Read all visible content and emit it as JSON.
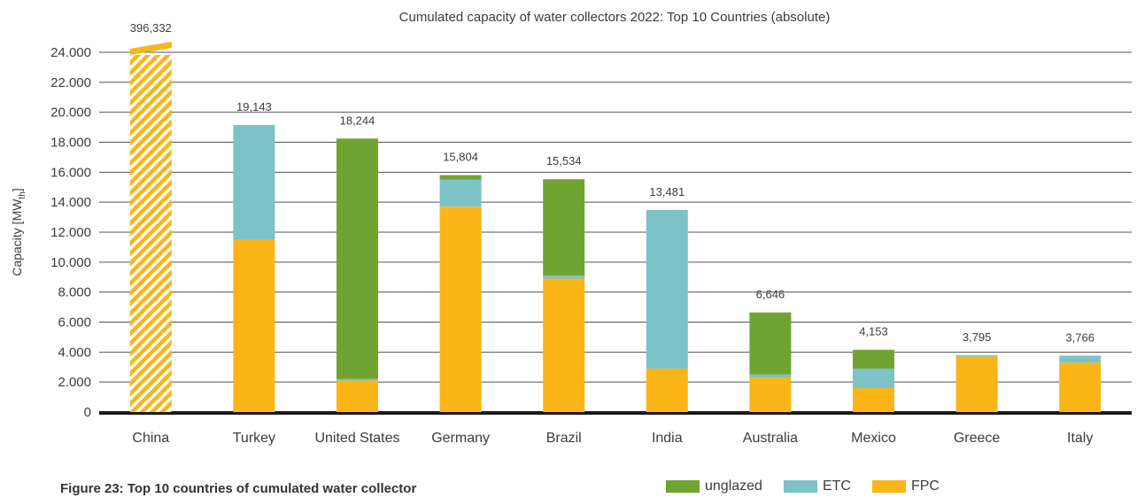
{
  "chart_data": {
    "type": "bar",
    "stacked": true,
    "title": "Cumulated capacity of water collectors 2022: Top 10 Countries (absolute)",
    "ylabel": "Capacity [MW",
    "ylabel_subscript": "th",
    "ylabel_suffix": "]",
    "ylim": [
      0,
      24000
    ],
    "yticks": [
      {
        "value": 0,
        "label": "0"
      },
      {
        "value": 2000,
        "label": "2.000"
      },
      {
        "value": 4000,
        "label": "4.000"
      },
      {
        "value": 6000,
        "label": "6.000"
      },
      {
        "value": 8000,
        "label": "8.000"
      },
      {
        "value": 10000,
        "label": "10.000"
      },
      {
        "value": 12000,
        "label": "12.000"
      },
      {
        "value": 14000,
        "label": "14.000"
      },
      {
        "value": 16000,
        "label": "16.000"
      },
      {
        "value": 18000,
        "label": "18.000"
      },
      {
        "value": 20000,
        "label": "20.000"
      },
      {
        "value": 22000,
        "label": "22.000"
      },
      {
        "value": 24000,
        "label": "24.000"
      }
    ],
    "grid": true,
    "legend_position": "bottom-right",
    "categories": [
      "China",
      "Turkey",
      "United States",
      "Germany",
      "Brazil",
      "India",
      "Australia",
      "Mexico",
      "Greece",
      "Italy"
    ],
    "totals": [
      "396,332",
      "19,143",
      "18,244",
      "15,804",
      "15,534",
      "13,481",
      "6,646",
      "4,153",
      "3,795",
      "3,766"
    ],
    "axis_break": {
      "category": "China",
      "style": "hatched"
    },
    "series": [
      {
        "name": "FPC",
        "color": "#fbb516",
        "values": [
          396332,
          11500,
          2100,
          13700,
          8900,
          2900,
          2300,
          1600,
          3700,
          3300
        ]
      },
      {
        "name": "ETC",
        "color": "#7cc2c8",
        "values": [
          0,
          7643,
          100,
          1800,
          200,
          10581,
          200,
          1300,
          95,
          466
        ]
      },
      {
        "name": "unglazed",
        "color": "#70a432",
        "values": [
          0,
          0,
          16044,
          304,
          6434,
          0,
          4146,
          1253,
          0,
          0
        ]
      }
    ],
    "legend_order": [
      "unglazed",
      "ETC",
      "FPC"
    ]
  },
  "caption": "Figure 23: Top 10 countries of cumulated water collector"
}
